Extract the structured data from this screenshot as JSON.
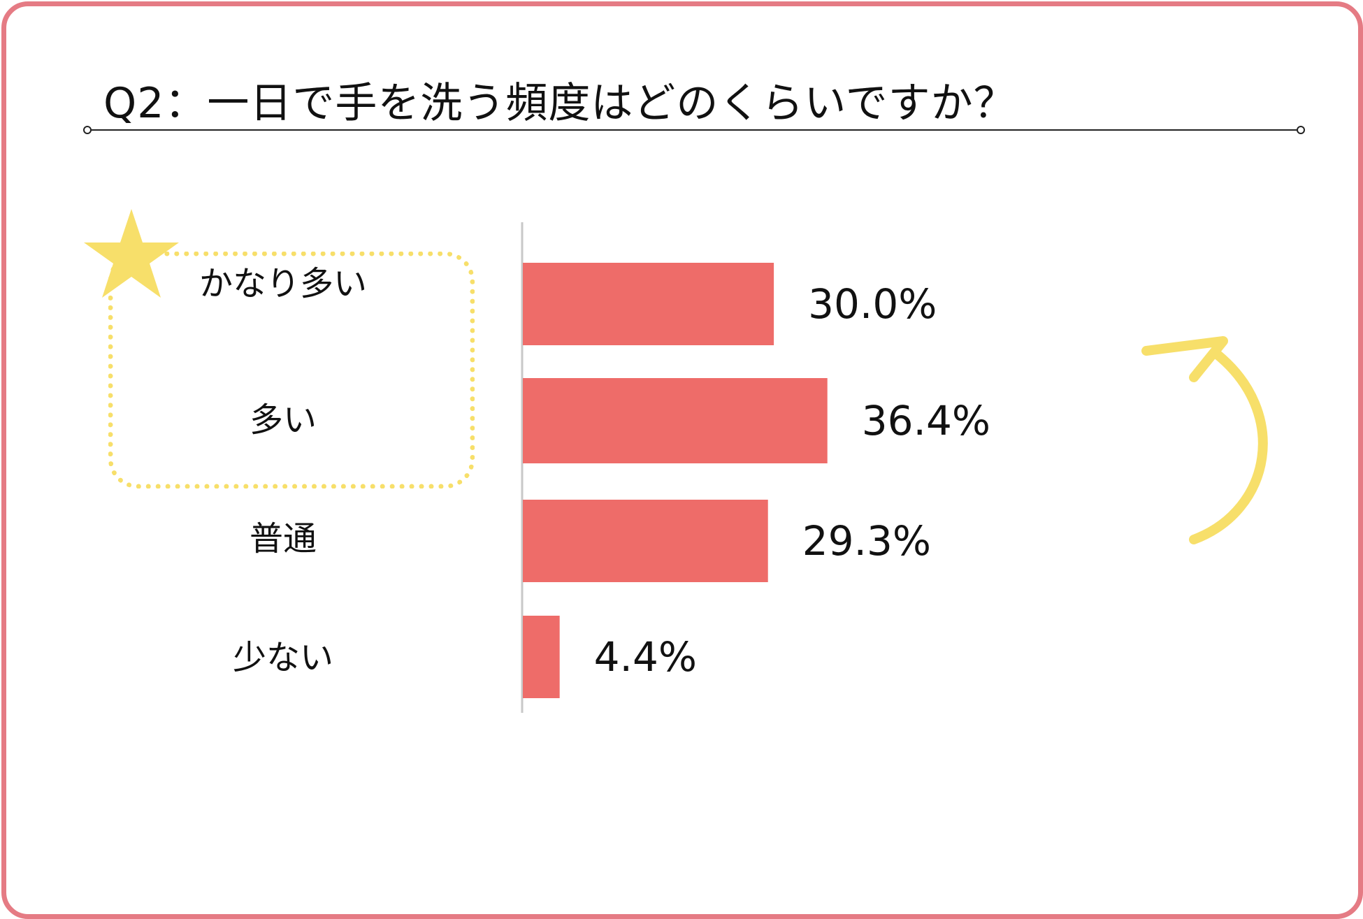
{
  "title": "Q2：一日で手を洗う頻度はどのくらいですか？",
  "colors": {
    "frame": "#e57b84",
    "bar": "#ee6c69",
    "highlight": "#f7df6a"
  },
  "decorations": {
    "star_icon": "star-icon",
    "arrow_icon": "curved-arrow-icon"
  },
  "chart_data": {
    "type": "bar",
    "orientation": "horizontal",
    "categories": [
      "かなり多い",
      "多い",
      "普通",
      "少ない"
    ],
    "values": [
      30.0,
      36.4,
      29.3,
      4.4
    ],
    "value_labels": [
      "30.0%",
      "36.4%",
      "29.3%",
      "4.4%"
    ],
    "xlim": [
      0,
      100
    ],
    "grid": false,
    "highlighted_categories": [
      "かなり多い",
      "多い"
    ]
  }
}
